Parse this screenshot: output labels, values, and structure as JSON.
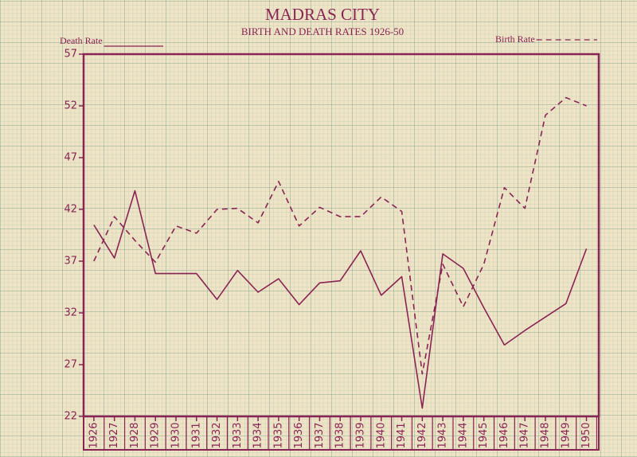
{
  "chart_data": {
    "type": "line",
    "title": "MADRAS CITY",
    "subtitle": "BIRTH AND DEATH RATES 1926-50",
    "x": [
      1926,
      1927,
      1928,
      1929,
      1930,
      1931,
      1932,
      1933,
      1934,
      1935,
      1936,
      1937,
      1938,
      1939,
      1940,
      1941,
      1942,
      1943,
      1944,
      1945,
      1946,
      1947,
      1948,
      1949,
      1950
    ],
    "series": [
      {
        "name": "Death Rate",
        "color": "#8a2455",
        "dash": false,
        "values": [
          40.5,
          37.3,
          43.8,
          35.8,
          35.8,
          35.8,
          33.3,
          36.1,
          34.0,
          35.3,
          32.8,
          34.9,
          35.1,
          38.0,
          33.7,
          35.5,
          22.8,
          37.7,
          36.3,
          32.5,
          28.9,
          30.3,
          31.6,
          32.9,
          38.2
        ]
      },
      {
        "name": "Birth Rate",
        "color": "#8a2455",
        "dash": true,
        "values": [
          37.0,
          41.3,
          39.0,
          36.9,
          40.4,
          39.7,
          42.0,
          42.1,
          40.7,
          44.7,
          40.4,
          42.2,
          41.3,
          41.3,
          43.2,
          41.8,
          26.1,
          36.7,
          32.6,
          36.7,
          44.1,
          42.1,
          51.1,
          52.8,
          52.0
        ]
      }
    ],
    "xlim": [
      1925.5,
      1950.6
    ],
    "ylim": [
      22,
      57
    ],
    "yticks": [
      22,
      27,
      32,
      37,
      42,
      47,
      52,
      57
    ]
  }
}
